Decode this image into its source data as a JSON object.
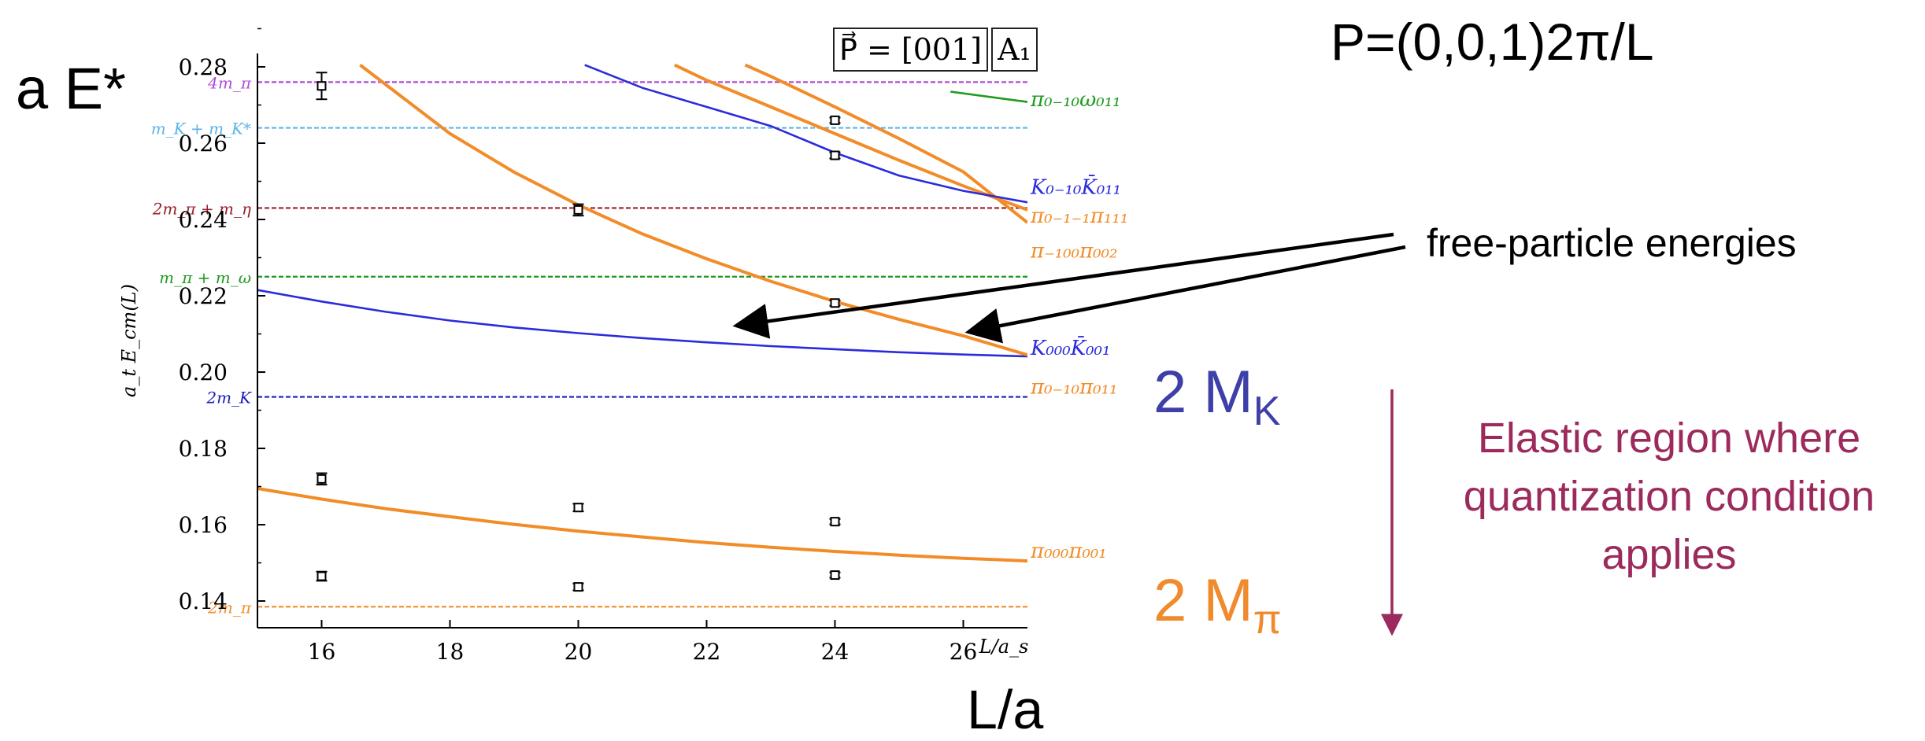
{
  "page": {
    "y_heading": "a E*",
    "momentum": "P=(0,0,1)2π/L",
    "free_label": "free-particle energies",
    "mk_label": "2 MK",
    "mk_main": "2 M",
    "mk_sub": "K",
    "mpi_main": "2 M",
    "mpi_sub": "π",
    "elastic_lines": [
      "Elastic region where",
      "quantization condition",
      "applies"
    ],
    "x_heading": "L/a",
    "inset_p": "P⃗ = [001]",
    "inset_irrep": "A₁"
  },
  "colors": {
    "orange": "#f28c28",
    "blue": "#2b2bdc",
    "green": "#1f9a1f",
    "purple": "#b04cd6",
    "cyan": "#5ab4e6",
    "darkred": "#9a1f2a",
    "navy": "#1e1eb4",
    "arrow_red": "#9c2a5c"
  },
  "chart_data": {
    "type": "line",
    "ylabel": "a_t E_cm(L)",
    "xlabel": "L/a_s",
    "xlim": [
      15,
      27
    ],
    "ylim": [
      0.133,
      0.2835
    ],
    "xticks": [
      16,
      18,
      20,
      22,
      24,
      26
    ],
    "yticks": [
      0.14,
      0.16,
      0.18,
      0.2,
      0.22,
      0.24,
      0.26,
      0.28
    ],
    "thresholds": [
      {
        "name": "4m_π",
        "value": 0.276,
        "color": "purple"
      },
      {
        "name": "m_K + m_K*",
        "value": 0.264,
        "color": "cyan"
      },
      {
        "name": "2m_π + m_η",
        "value": 0.243,
        "color": "darkred"
      },
      {
        "name": "m_π + m_ω",
        "value": 0.225,
        "color": "green"
      },
      {
        "name": "2m_K",
        "value": 0.1935,
        "color": "navy"
      },
      {
        "name": "2m_π",
        "value": 0.1385,
        "color": "orange"
      }
    ],
    "series": [
      {
        "name": "π₀₀₀π₀₀₁",
        "color": "orange",
        "x": [
          15,
          16,
          17,
          18,
          19,
          20,
          21,
          22,
          23,
          24,
          25,
          26,
          27
        ],
        "y": [
          0.1695,
          0.1667,
          0.1642,
          0.1621,
          0.1601,
          0.1583,
          0.1568,
          0.1553,
          0.1541,
          0.153,
          0.152,
          0.1512,
          0.1505
        ]
      },
      {
        "name": "K₀₀₀K̄₀₀₁",
        "color": "blue",
        "x": [
          15,
          16,
          17,
          18,
          19,
          20,
          21,
          22,
          23,
          24,
          25,
          26,
          27
        ],
        "y": [
          0.2215,
          0.2185,
          0.2158,
          0.2135,
          0.2117,
          0.2102,
          0.2089,
          0.2078,
          0.2068,
          0.206,
          0.2052,
          0.2046,
          0.2041
        ]
      },
      {
        "name": "π₀₋₁₀π₀₁₁",
        "color": "orange",
        "x": [
          16.6,
          18,
          19,
          20,
          21,
          22,
          23,
          24,
          25,
          26,
          27
        ],
        "y": [
          0.2805,
          0.2625,
          0.2524,
          0.2438,
          0.2362,
          0.2297,
          0.2238,
          0.2185,
          0.2138,
          0.2095,
          0.2045
        ]
      },
      {
        "name": "π₀₋₁₋₁π₁₁₁",
        "color": "orange",
        "x": [
          21.5,
          22,
          23,
          24,
          25,
          26,
          27
        ],
        "y": [
          0.2805,
          0.2765,
          0.2695,
          0.2625,
          0.2555,
          0.2488,
          0.2425
        ]
      },
      {
        "name": "π₋₁₀₀π₀₀₂",
        "color": "orange",
        "x": [
          22.6,
          23,
          24,
          25,
          26,
          27
        ],
        "y": [
          0.2805,
          0.2775,
          0.2695,
          0.2612,
          0.2525,
          0.2392
        ]
      },
      {
        "name": "K₀₋₁₀K̄₀₁₁",
        "color": "blue",
        "x": [
          20.1,
          21,
          22,
          23,
          24,
          25,
          26,
          27
        ],
        "y": [
          0.2805,
          0.2745,
          0.2695,
          0.2645,
          0.2575,
          0.2515,
          0.2475,
          0.2445
        ]
      },
      {
        "name": "π₀₋₁₀ω₀₁₁",
        "color": "green",
        "x": [
          25.8,
          27
        ],
        "y": [
          0.2735,
          0.2708
        ]
      }
    ],
    "points": [
      {
        "x": 16,
        "y": 0.275,
        "err": 0.0035
      },
      {
        "x": 16,
        "y": 0.172,
        "err": 0.0015
      },
      {
        "x": 16,
        "y": 0.1465,
        "err": 0.0012
      },
      {
        "x": 20,
        "y": 0.2425,
        "err": 0.0015
      },
      {
        "x": 20,
        "y": 0.1645,
        "err": 0.001
      },
      {
        "x": 20,
        "y": 0.1437,
        "err": 0.0009
      },
      {
        "x": 24,
        "y": 0.266,
        "err": 0.0007
      },
      {
        "x": 24,
        "y": 0.2568,
        "err": 0.0008
      },
      {
        "x": 24,
        "y": 0.2181,
        "err": 0.0007
      },
      {
        "x": 24,
        "y": 0.1608,
        "err": 0.0007
      },
      {
        "x": 24,
        "y": 0.1468,
        "err": 0.0007
      }
    ]
  }
}
